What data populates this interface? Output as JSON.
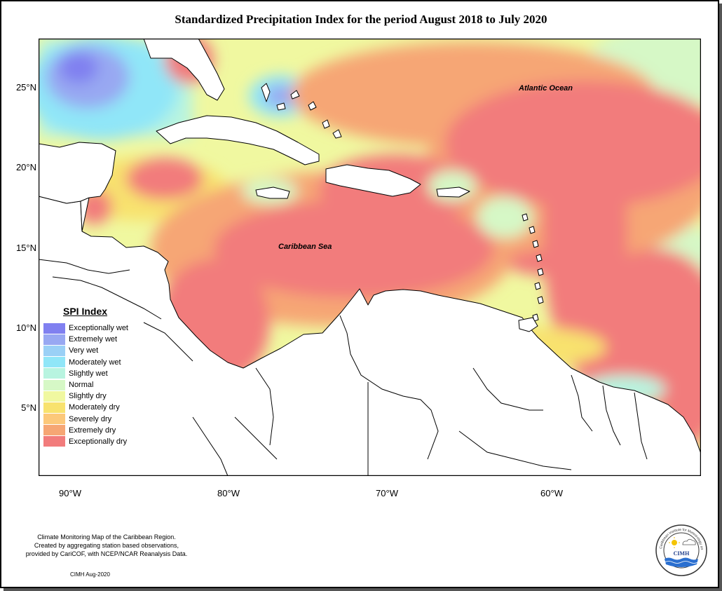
{
  "title": "Standardized Precipitation Index for the period August 2018 to July 2020",
  "axes": {
    "y_ticks": [
      "25°N",
      "20°N",
      "15°N",
      "10°N",
      "5°N"
    ],
    "x_ticks": [
      "90°W",
      "80°W",
      "70°W",
      "60°W"
    ]
  },
  "map_labels": {
    "atlantic": "Atlantic Ocean",
    "caribbean": "Caribbean Sea"
  },
  "legend": {
    "title": "SPI Index",
    "items": [
      {
        "label": "Exceptionally wet",
        "color": "#8080f0"
      },
      {
        "label": "Extremely wet",
        "color": "#98a8f2"
      },
      {
        "label": "Very wet",
        "color": "#9ad0f6"
      },
      {
        "label": "Moderately wet",
        "color": "#90e6f8"
      },
      {
        "label": "Slightly wet",
        "color": "#b8f4e0"
      },
      {
        "label": "Normal",
        "color": "#d6f8c6"
      },
      {
        "label": "Slightly dry",
        "color": "#f0f8a0"
      },
      {
        "label": "Moderately dry",
        "color": "#f8e26e"
      },
      {
        "label": "Severely dry",
        "color": "#fcc87a"
      },
      {
        "label": "Extremely dry",
        "color": "#f6a674"
      },
      {
        "label": "Exceptionally dry",
        "color": "#f27c7c"
      }
    ]
  },
  "credits": [
    "Climate Monitoring Map of the Caribbean Region.",
    "Created by aggregating station based observations,",
    "provided by CariCOF, with NCEP/NCAR Reanalysis Data."
  ],
  "date_stamp": "CIMH Aug-2020",
  "logo": {
    "text": "CIMH",
    "ring_text": "Caribbean Institute for Meteorology and Hydrology"
  }
}
